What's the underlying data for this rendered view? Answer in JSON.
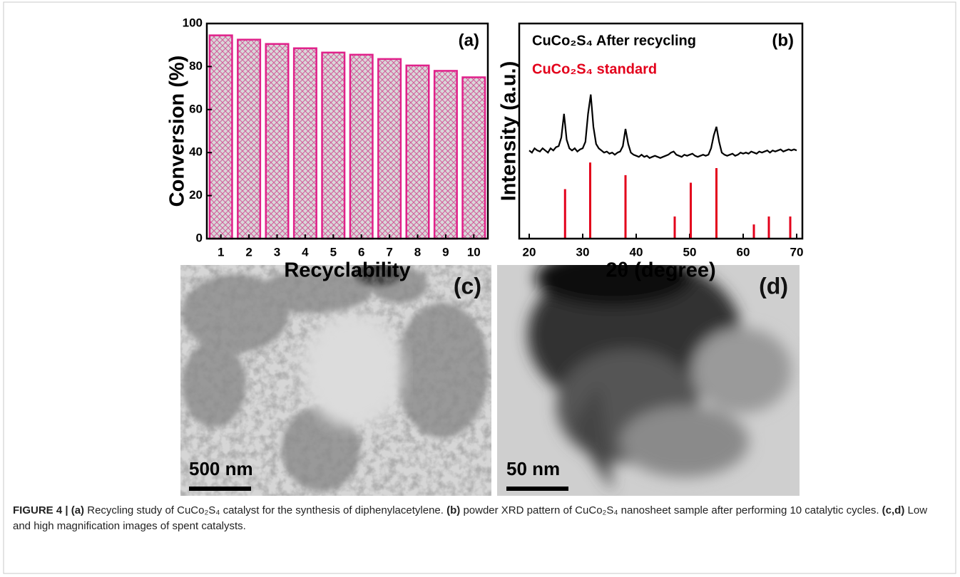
{
  "chart_data": [
    {
      "type": "bar",
      "panel_label": "(a)",
      "xlabel": "Recyclability",
      "ylabel": "Conversion (%)",
      "categories": [
        "1",
        "2",
        "3",
        "4",
        "5",
        "6",
        "7",
        "8",
        "9",
        "10"
      ],
      "values": [
        94.5,
        92.5,
        90.5,
        88.5,
        86.5,
        85.5,
        83.5,
        80.5,
        78,
        75
      ],
      "color": "#e0218a",
      "ylim": [
        0,
        100
      ],
      "yticks": [
        0,
        20,
        40,
        60,
        80,
        100
      ]
    },
    {
      "type": "line",
      "panel_label": "(b)",
      "xlabel": "2θ (degree)",
      "ylabel": "Intensity (a.u.)",
      "xlim": [
        20,
        70
      ],
      "xticks": [
        20,
        30,
        40,
        50,
        60,
        70
      ],
      "ylim": [
        0,
        100
      ],
      "series": [
        {
          "name": "CuCo₂S₄ After recycling",
          "color": "#000000",
          "style": "line",
          "x": [
            20,
            20.5,
            21,
            21.5,
            22,
            22.5,
            23,
            23.5,
            24,
            24.5,
            25,
            25.5,
            26,
            26.5,
            27,
            27.5,
            28,
            28.5,
            29,
            29.5,
            30,
            30.5,
            31,
            31.5,
            32,
            32.5,
            33,
            33.5,
            34,
            34.5,
            35,
            35.5,
            36,
            36.5,
            37,
            37.5,
            38,
            38.5,
            39,
            39.5,
            40,
            40.5,
            41,
            41.5,
            42,
            42.5,
            43,
            43.5,
            44,
            44.5,
            45,
            45.5,
            46,
            46.5,
            47,
            47.5,
            48,
            48.5,
            49,
            49.5,
            50,
            50.5,
            51,
            51.5,
            52,
            52.5,
            53,
            53.5,
            54,
            54.5,
            55,
            55.5,
            56,
            56.5,
            57,
            57.5,
            58,
            58.5,
            59,
            59.5,
            60,
            60.5,
            61,
            61.5,
            62,
            62.5,
            63,
            63.5,
            64,
            64.5,
            65,
            65.5,
            66,
            66.5,
            67,
            67.5,
            68,
            68.5,
            69,
            69.5,
            70
          ],
          "values": [
            41,
            40,
            42,
            41,
            40.5,
            42,
            41,
            40,
            42,
            41,
            42.5,
            43,
            47,
            58,
            46,
            42,
            41,
            42,
            40.5,
            41.5,
            42,
            45,
            58,
            67,
            52,
            44,
            42,
            41,
            40,
            40.5,
            39.5,
            40,
            39,
            40,
            40.5,
            43,
            51,
            44,
            40,
            39,
            38.5,
            38,
            39,
            38,
            38.5,
            37.5,
            38,
            38.5,
            38,
            37.5,
            38,
            38.5,
            39,
            40,
            40.5,
            39,
            38.5,
            38,
            39,
            38.5,
            39,
            39.5,
            38.5,
            38,
            38.5,
            39,
            38.5,
            39,
            42,
            48,
            52,
            45,
            40,
            39,
            38.5,
            39,
            39.5,
            38.5,
            39,
            40,
            39.5,
            40,
            39.5,
            40.5,
            40,
            39.5,
            40.5,
            40,
            40.5,
            41,
            40,
            41,
            40.5,
            41,
            41.5,
            40.5,
            41,
            41.5,
            41,
            41.5,
            41
          ]
        },
        {
          "name": "CuCo₂S₄ standard",
          "color": "#e3001b",
          "style": "stick",
          "x": [
            26.7,
            31.4,
            38,
            47.2,
            50.2,
            55,
            62,
            64.8,
            68.8
          ],
          "values": [
            23,
            35.4,
            29.5,
            10.3,
            26,
            32.8,
            6.6,
            10.3,
            10.3
          ]
        }
      ]
    }
  ],
  "images": [
    {
      "panel_label": "(c)",
      "scale_bar": "500 nm"
    },
    {
      "panel_label": "(d)",
      "scale_bar": "50 nm"
    }
  ],
  "caption": [
    "FIGURE 4 |",
    "(a)",
    "Recycling study of CuCo₂S₄ catalyst for the synthesis of diphenylacetylene.",
    "(b)",
    "powder XRD pattern of CuCo₂S₄ nanosheet sample after performing 10 catalytic cycles.",
    "(c,d)",
    "Low and high magnification images of spent catalysts."
  ]
}
